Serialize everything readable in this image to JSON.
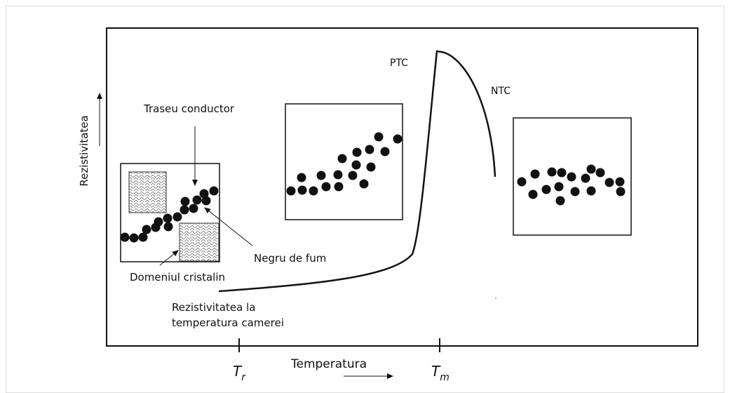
{
  "diagram": {
    "y_axis_label": "Rezistivitatea",
    "x_axis_label": "Temperatura",
    "tick_labels": [
      {
        "symbol": "T",
        "subscript": "r"
      },
      {
        "symbol": "T",
        "subscript": "m"
      }
    ],
    "labels": {
      "ptc": "PTC",
      "ntc": "NTC",
      "conductive_path": "Traseu conductor",
      "carbon_black": "Negru de fum",
      "crystalline_domain": "Domeniul cristalin",
      "room_temp_resistivity": [
        "Rezistivitatea la",
        "temperatura camerei"
      ]
    }
  }
}
